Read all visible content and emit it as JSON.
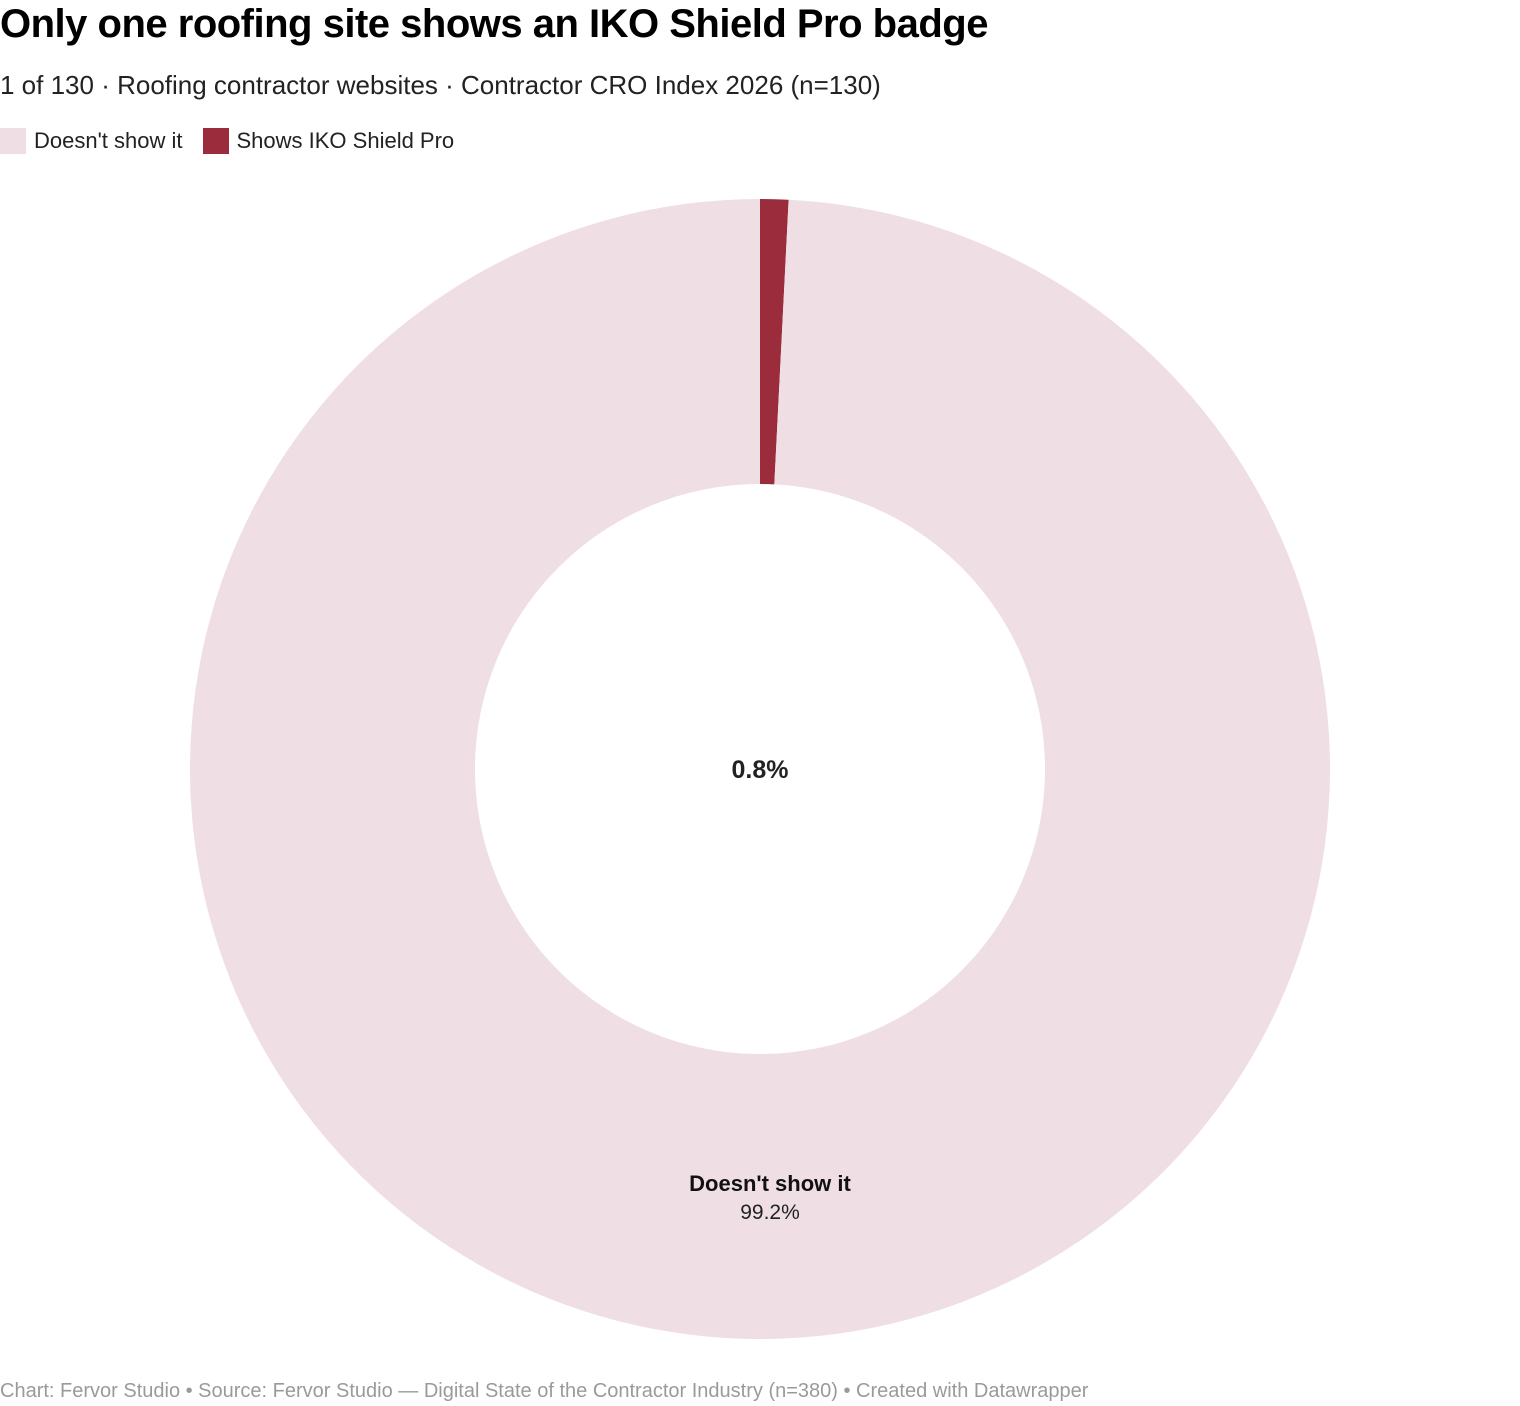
{
  "header": {
    "title": "Only one roofing site shows an IKO Shield Pro badge",
    "subtitle": "1 of 130 · Roofing contractor websites · Contractor CRO Index 2026 (n=130)"
  },
  "legend": {
    "items": [
      {
        "label": "Doesn't show it",
        "color": "#efdfe5"
      },
      {
        "label": "Shows IKO Shield Pro",
        "color": "#9b2c3b"
      }
    ]
  },
  "chart_data": {
    "type": "pie",
    "donut": true,
    "slices": [
      {
        "label": "Shows IKO Shield Pro",
        "value": 0.8,
        "value_label": "0.8%",
        "color": "#9b2c3b"
      },
      {
        "label": "Doesn't show it",
        "value": 99.2,
        "value_label": "99.2%",
        "color": "#efdfe5"
      }
    ],
    "center_label": "0.8%",
    "slice_label": {
      "name": "Doesn't show it",
      "value": "99.2%"
    },
    "legend_position": "top-left"
  },
  "footer": {
    "credit": "Chart: Fervor Studio • Source: Fervor Studio — Digital State of the Contractor Industry (n=380) • Created with Datawrapper"
  }
}
